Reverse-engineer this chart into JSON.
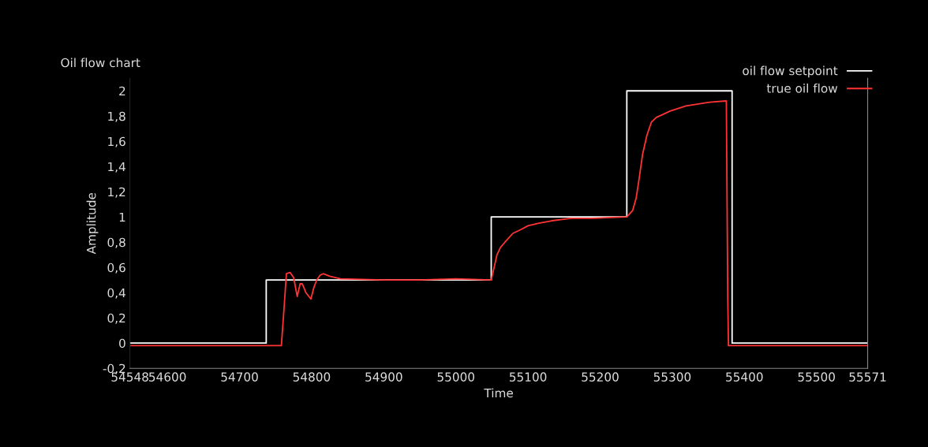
{
  "chart_data": {
    "type": "line",
    "title": "Oil flow chart",
    "xlabel": "Time",
    "ylabel": "Amplitude",
    "xlim": [
      54548,
      55571
    ],
    "xticks": [
      54548,
      54600,
      54700,
      54800,
      54900,
      55000,
      55100,
      55200,
      55300,
      55400,
      55500,
      55571
    ],
    "ylim": [
      -0.2,
      2.1
    ],
    "yticks": [
      {
        "value": -0.2,
        "label": "-0,2"
      },
      0,
      {
        "value": 0.2,
        "label": "0,2"
      },
      {
        "value": 0.4,
        "label": "0,4"
      },
      {
        "value": 0.6,
        "label": "0,6"
      },
      {
        "value": 0.8,
        "label": "0,8"
      },
      1,
      {
        "value": 1.2,
        "label": "1,2"
      },
      {
        "value": 1.4,
        "label": "1,4"
      },
      {
        "value": 1.6,
        "label": "1,6"
      },
      {
        "value": 1.8,
        "label": "1,8"
      },
      2
    ],
    "grid": false,
    "legend": "top right",
    "marker": "none",
    "line_style": "solid",
    "series": [
      {
        "name": "oil flow setpoint",
        "color": "#ffffff",
        "x": [
          54548,
          54737,
          54737,
          55049,
          55049,
          55237,
          55237,
          55383,
          55383,
          55571
        ],
        "values": [
          0,
          0,
          0.5,
          0.5,
          1,
          1,
          2,
          2,
          0,
          0
        ]
      },
      {
        "name": "true oil flow",
        "color": "#ff3333",
        "x": [
          54548,
          54600,
          54650,
          54700,
          54758,
          54762,
          54765,
          54770,
          54775,
          54780,
          54784,
          54787,
          54792,
          54799,
          54803,
          54807,
          54812,
          54816,
          54825,
          54840,
          54900,
          54950,
          55000,
          55049,
          55053,
          55057,
          55062,
          55068,
          55079,
          55090,
          55100,
          55115,
          55133,
          55160,
          55188,
          55237,
          55245,
          55250,
          55254,
          55259,
          55265,
          55271,
          55278,
          55286,
          55297,
          55319,
          55352,
          55375,
          55377,
          55378,
          55400,
          55500,
          55571
        ],
        "values": [
          -0.02,
          -0.02,
          -0.02,
          -0.02,
          -0.02,
          0.3,
          0.55,
          0.56,
          0.52,
          0.37,
          0.47,
          0.47,
          0.4,
          0.35,
          0.44,
          0.5,
          0.54,
          0.55,
          0.53,
          0.51,
          0.5,
          0.5,
          0.51,
          0.5,
          0.6,
          0.7,
          0.76,
          0.8,
          0.87,
          0.9,
          0.93,
          0.95,
          0.97,
          0.99,
          0.99,
          1.0,
          1.05,
          1.15,
          1.3,
          1.5,
          1.65,
          1.75,
          1.79,
          1.81,
          1.84,
          1.88,
          1.91,
          1.92,
          0.35,
          -0.02,
          -0.02,
          -0.02,
          -0.02
        ]
      }
    ]
  }
}
